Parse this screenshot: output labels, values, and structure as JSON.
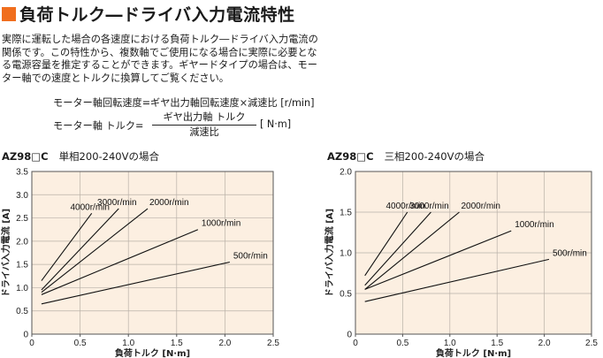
{
  "title": "負荷トルク―ドライバ入力電流特性",
  "accent_color": "#f06e1e",
  "intro_text": "実際に運転した場合の各速度における負荷トルク―ドライバ入力電流の関係です。この特性から、複数軸でご使用になる場合に実際に必要となる電源容量を推定することができます。ギヤードタイプの場合は、モーター軸での速度とトルクに換算してご覧ください。",
  "formula1": "モーター軸回転速度=ギヤ出力軸回転速度×減速比 [r/min]",
  "formula2": {
    "lhs": "モーター軸 トルク=",
    "numerator": "ギヤ出力軸 トルク",
    "denominator": "減速比",
    "unit": "[ N·m]"
  },
  "chart_data": [
    {
      "type": "line",
      "model": "AZ98□C",
      "condition": "単相200-240Vの場合",
      "xlabel": "負荷トルク [N·m]",
      "ylabel": "ドライバ入力電流 [A]",
      "xlim": [
        0,
        2.5
      ],
      "ylim": [
        0,
        3.5
      ],
      "xticks": [
        0,
        0.5,
        1.0,
        1.5,
        2.0,
        2.5
      ],
      "yticks": [
        0,
        0.5,
        1.0,
        1.5,
        2.0,
        2.5,
        3.0,
        3.5
      ],
      "grid": true,
      "series": [
        {
          "name": "4000r/min",
          "x": [
            0.1,
            0.62
          ],
          "y": [
            1.15,
            2.6
          ]
        },
        {
          "name": "3000r/min",
          "x": [
            0.1,
            0.9
          ],
          "y": [
            0.95,
            2.7
          ]
        },
        {
          "name": "2000r/min",
          "x": [
            0.1,
            1.2
          ],
          "y": [
            0.9,
            2.7
          ]
        },
        {
          "name": "1000r/min",
          "x": [
            0.1,
            1.72
          ],
          "y": [
            0.85,
            2.25
          ]
        },
        {
          "name": "500r/min",
          "x": [
            0.1,
            2.05
          ],
          "y": [
            0.65,
            1.55
          ]
        }
      ]
    },
    {
      "type": "line",
      "model": "AZ98□C",
      "condition": "三相200-240Vの場合",
      "xlabel": "負荷トルク [N·m]",
      "ylabel": "ドライバ入力電流 [A]",
      "xlim": [
        0,
        2.5
      ],
      "ylim": [
        0,
        2.0
      ],
      "xticks": [
        0,
        0.5,
        1.0,
        1.5,
        2.0,
        2.5
      ],
      "yticks": [
        0,
        0.5,
        1.0,
        1.5,
        2.0
      ],
      "grid": true,
      "series": [
        {
          "name": "4000r/min",
          "x": [
            0.1,
            0.55
          ],
          "y": [
            0.72,
            1.5
          ]
        },
        {
          "name": "3000r/min",
          "x": [
            0.1,
            0.8
          ],
          "y": [
            0.6,
            1.5
          ]
        },
        {
          "name": "2000r/min",
          "x": [
            0.1,
            1.1
          ],
          "y": [
            0.55,
            1.5
          ]
        },
        {
          "name": "1000r/min",
          "x": [
            0.1,
            1.65
          ],
          "y": [
            0.55,
            1.27
          ]
        },
        {
          "name": "500r/min",
          "x": [
            0.1,
            2.05
          ],
          "y": [
            0.4,
            0.92
          ]
        }
      ]
    }
  ]
}
